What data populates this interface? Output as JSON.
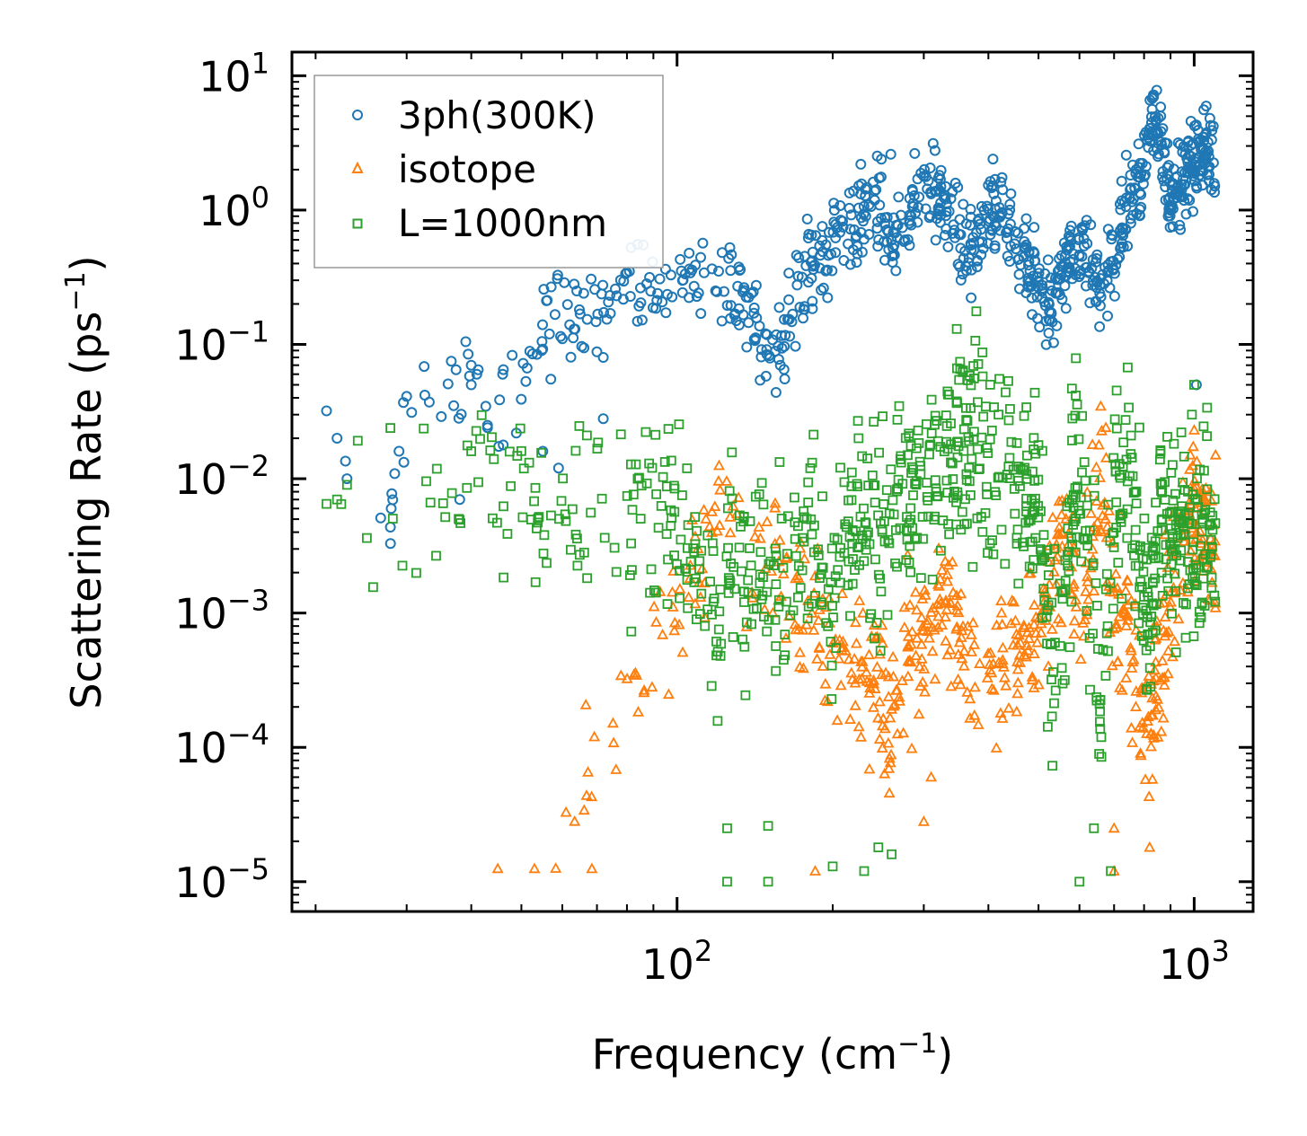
{
  "chart_data": {
    "type": "scatter",
    "xscale": "log",
    "yscale": "log",
    "xlabel": "Frequency (cm",
    "xlabel_exp": "−1",
    "xlabel_close": ")",
    "ylabel": "Scattering Rate (ps",
    "ylabel_exp": "−1",
    "ylabel_close": ")",
    "xlim": [
      18,
      1300
    ],
    "ylim": [
      6e-06,
      15
    ],
    "xticks": [
      {
        "value": 100,
        "base": "10",
        "exp": "2"
      },
      {
        "value": 1000,
        "base": "10",
        "exp": "3"
      }
    ],
    "yticks": [
      {
        "value": 10,
        "base": "10",
        "exp": "1"
      },
      {
        "value": 1,
        "base": "10",
        "exp": "0"
      },
      {
        "value": 0.1,
        "base": "10",
        "exp": "−1"
      },
      {
        "value": 0.01,
        "base": "10",
        "exp": "−2"
      },
      {
        "value": 0.001,
        "base": "10",
        "exp": "−3"
      },
      {
        "value": 0.0001,
        "base": "10",
        "exp": "−4"
      },
      {
        "value": 1e-05,
        "base": "10",
        "exp": "−5"
      }
    ],
    "legend_position": "top-left",
    "series": [
      {
        "name": "3ph(300K)",
        "marker": "circle",
        "color": "#1f77b4",
        "profile": [
          [
            21,
            0.032
          ],
          [
            22,
            0.02
          ],
          [
            23,
            0.01
          ],
          [
            28,
            0.006
          ],
          [
            29,
            0.016
          ],
          [
            30,
            0.041
          ],
          [
            35,
            0.03
          ],
          [
            40,
            0.07
          ],
          [
            45,
            0.02
          ],
          [
            50,
            0.06
          ],
          [
            55,
            0.15
          ],
          [
            60,
            0.21
          ],
          [
            65,
            0.16
          ],
          [
            70,
            0.19
          ],
          [
            80,
            0.26
          ],
          [
            90,
            0.25
          ],
          [
            100,
            0.34
          ],
          [
            110,
            0.26
          ],
          [
            120,
            0.27
          ],
          [
            130,
            0.24
          ],
          [
            140,
            0.15
          ],
          [
            150,
            0.07
          ],
          [
            160,
            0.1
          ],
          [
            170,
            0.2
          ],
          [
            180,
            0.42
          ],
          [
            200,
            0.5
          ],
          [
            220,
            0.8
          ],
          [
            240,
            1.3
          ],
          [
            260,
            0.55
          ],
          [
            280,
            0.9
          ],
          [
            300,
            1.3
          ],
          [
            330,
            1.2
          ],
          [
            350,
            0.6
          ],
          [
            380,
            0.5
          ],
          [
            400,
            1.0
          ],
          [
            430,
            0.9
          ],
          [
            460,
            0.45
          ],
          [
            500,
            0.32
          ],
          [
            530,
            0.17
          ],
          [
            560,
            0.36
          ],
          [
            600,
            0.55
          ],
          [
            650,
            0.3
          ],
          [
            700,
            0.5
          ],
          [
            740,
            1.1
          ],
          [
            780,
            1.6
          ],
          [
            800,
            2.2
          ],
          [
            820,
            5.5
          ],
          [
            860,
            4.0
          ],
          [
            900,
            1.2
          ],
          [
            950,
            1.8
          ],
          [
            1000,
            2.6
          ],
          [
            1050,
            2.6
          ],
          [
            1100,
            2.2
          ]
        ],
        "outliers": [
          [
            21,
            0.032
          ],
          [
            22,
            0.02
          ],
          [
            23,
            0.01
          ],
          [
            28,
            0.006
          ],
          [
            30,
            0.041
          ],
          [
            29,
            0.016
          ],
          [
            35,
            0.029
          ],
          [
            37,
            0.035
          ],
          [
            38,
            0.007
          ],
          [
            40,
            0.07
          ],
          [
            40,
            0.05
          ],
          [
            41,
            0.06
          ],
          [
            43,
            0.025
          ],
          [
            43,
            0.024
          ],
          [
            46,
            0.06
          ],
          [
            48,
            0.083
          ],
          [
            51,
            0.053
          ],
          [
            55,
            0.016
          ],
          [
            57,
            0.055
          ],
          [
            59,
            0.012
          ],
          [
            60,
            0.11
          ],
          [
            62,
            0.14
          ],
          [
            64,
            0.25
          ],
          [
            66,
            0.24
          ],
          [
            72,
            0.028
          ],
          [
            72,
            0.08
          ],
          [
            259,
            2.6
          ],
          [
            1010,
            0.05
          ],
          [
            835,
            7.2
          ]
        ]
      },
      {
        "name": "isotope",
        "marker": "triangle",
        "color": "#ff7f0e",
        "profile": [
          [
            45,
            1.3e-05
          ],
          [
            55,
            2e-05
          ],
          [
            65,
            4e-05
          ],
          [
            75,
            0.00011
          ],
          [
            85,
            0.00025
          ],
          [
            95,
            0.0006
          ],
          [
            105,
            0.0012
          ],
          [
            115,
            0.003
          ],
          [
            125,
            0.008
          ],
          [
            135,
            0.0025
          ],
          [
            145,
            0.004
          ],
          [
            155,
            0.003
          ],
          [
            165,
            0.0014
          ],
          [
            175,
            0.0009
          ],
          [
            185,
            0.0006
          ],
          [
            200,
            0.0005
          ],
          [
            220,
            0.0003
          ],
          [
            240,
            0.0004
          ],
          [
            260,
            0.0002
          ],
          [
            290,
            0.0006
          ],
          [
            310,
            0.001
          ],
          [
            330,
            0.0012
          ],
          [
            350,
            0.0008
          ],
          [
            380,
            0.0004
          ],
          [
            420,
            0.0003
          ],
          [
            460,
            0.0006
          ],
          [
            500,
            0.001
          ],
          [
            540,
            0.002
          ],
          [
            570,
            0.005
          ],
          [
            600,
            0.0004
          ],
          [
            620,
            0.002
          ],
          [
            660,
            0.01
          ],
          [
            700,
            0.001
          ],
          [
            740,
            0.0008
          ],
          [
            780,
            0.0003
          ],
          [
            820,
            0.00012
          ],
          [
            860,
            0.0005
          ],
          [
            920,
            0.002
          ],
          [
            980,
            0.006
          ],
          [
            1050,
            0.004
          ],
          [
            1100,
            0.002
          ]
        ],
        "outliers": [
          [
            45,
            1.25e-05
          ],
          [
            53,
            1.25e-05
          ],
          [
            185,
            1.2e-05
          ],
          [
            300,
            2.8e-05
          ],
          [
            310,
            6e-05
          ],
          [
            700,
            2.5e-05
          ],
          [
            700,
            1.2e-05
          ],
          [
            820,
            1.8e-05
          ],
          [
            1000,
            0.023
          ],
          [
            1100,
            0.015
          ],
          [
            675,
            0.024
          ]
        ]
      },
      {
        "name": "L=1000nm",
        "marker": "square",
        "color": "#2ca02c",
        "profile": [
          [
            21,
            0.0065
          ],
          [
            25,
            0.009
          ],
          [
            30,
            0.011
          ],
          [
            40,
            0.009
          ],
          [
            50,
            0.007
          ],
          [
            60,
            0.0065
          ],
          [
            70,
            0.006
          ],
          [
            80,
            0.0055
          ],
          [
            90,
            0.005
          ],
          [
            100,
            0.004
          ],
          [
            110,
            0.002
          ],
          [
            120,
            0.0008
          ],
          [
            130,
            0.003
          ],
          [
            140,
            0.002
          ],
          [
            150,
            0.0015
          ],
          [
            160,
            0.003
          ],
          [
            170,
            0.002
          ],
          [
            180,
            0.004
          ],
          [
            200,
            0.001
          ],
          [
            220,
            0.006
          ],
          [
            240,
            0.004
          ],
          [
            260,
            0.008
          ],
          [
            290,
            0.01
          ],
          [
            320,
            0.013
          ],
          [
            350,
            0.015
          ],
          [
            400,
            0.015
          ],
          [
            450,
            0.013
          ],
          [
            500,
            0.007
          ],
          [
            540,
            0.0002
          ],
          [
            580,
            0.008
          ],
          [
            620,
            0.004
          ],
          [
            660,
            0.0002
          ],
          [
            700,
            0.007
          ],
          [
            740,
            0.01
          ],
          [
            780,
            0.005
          ],
          [
            820,
            0.0005
          ],
          [
            860,
            0.007
          ],
          [
            900,
            0.004
          ],
          [
            950,
            0.005
          ],
          [
            1000,
            0.003
          ],
          [
            1050,
            0.005
          ],
          [
            1100,
            0.003
          ]
        ],
        "outliers": [
          [
            21,
            0.0065
          ],
          [
            22,
            0.007
          ],
          [
            23,
            0.009
          ],
          [
            40,
            0.016
          ],
          [
            125,
            2.5e-05
          ],
          [
            150,
            2.6e-05
          ],
          [
            125,
            1e-05
          ],
          [
            150,
            1e-05
          ],
          [
            200,
            1.3e-05
          ],
          [
            230,
            1.2e-05
          ],
          [
            245,
            1.8e-05
          ],
          [
            260,
            1.6e-05
          ],
          [
            600,
            1e-05
          ],
          [
            640,
            2.5e-05
          ],
          [
            690,
            1.2e-05
          ],
          [
            1000,
            0.05
          ],
          [
            990,
            0.03
          ]
        ]
      }
    ]
  }
}
